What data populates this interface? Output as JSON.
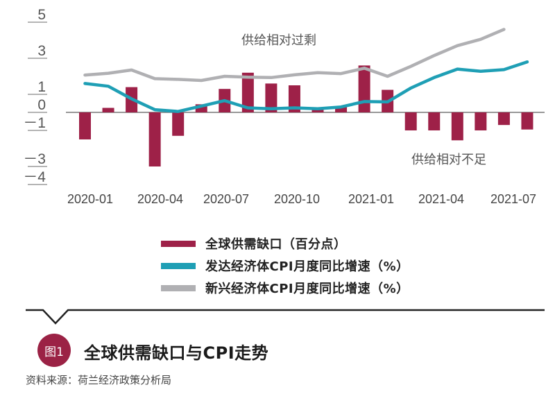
{
  "chart_data": {
    "type": "bar+line",
    "title": "全球供需缺口与CPI走势",
    "figure_label": "图1",
    "source": "资料来源：荷兰经济政策分析局",
    "xlabel": "",
    "ylabel": "",
    "ylim": [
      -4,
      5
    ],
    "y_ticks": [
      5,
      3,
      1,
      0,
      -1,
      -3,
      -4
    ],
    "y_tick_labels": [
      "5",
      "3",
      "1",
      "0",
      "－1",
      "－3",
      "－4"
    ],
    "x_tick_labels": [
      "2020-01",
      "2020-04",
      "2020-07",
      "2020-10",
      "2021-01",
      "2021-04",
      "2021-07"
    ],
    "categories": [
      "2020-01",
      "2020-02",
      "2020-03",
      "2020-04",
      "2020-05",
      "2020-06",
      "2020-07",
      "2020-08",
      "2020-09",
      "2020-10",
      "2020-11",
      "2020-12",
      "2021-01",
      "2021-02",
      "2021-03",
      "2021-04",
      "2021-05",
      "2021-06",
      "2021-07",
      "2021-08"
    ],
    "series": [
      {
        "name": "全球供需缺口（百分点）",
        "kind": "bar",
        "color": "#9e2148",
        "values": [
          -1.5,
          0.25,
          1.4,
          -3.0,
          -1.3,
          0.45,
          1.3,
          2.2,
          1.6,
          1.5,
          0.15,
          0.3,
          2.6,
          1.25,
          -1.0,
          -1.0,
          -1.55,
          -1.0,
          -0.7,
          -0.95
        ]
      },
      {
        "name": "发达经济体CPI月度同比增速（%）",
        "kind": "line",
        "color": "#1f9fb5",
        "values": [
          1.6,
          1.45,
          0.75,
          0.15,
          0.05,
          0.35,
          0.65,
          0.25,
          0.2,
          0.25,
          0.2,
          0.3,
          0.6,
          0.58,
          1.35,
          1.93,
          2.4,
          2.28,
          2.37,
          2.8
        ]
      },
      {
        "name": "新兴经济体CPI月度同比增速（%）",
        "kind": "line",
        "color": "#b0b0b3",
        "values": [
          2.07,
          2.17,
          2.35,
          1.87,
          1.83,
          1.77,
          2.0,
          1.95,
          1.93,
          2.08,
          2.2,
          2.15,
          2.45,
          2.0,
          2.55,
          3.15,
          3.7,
          4.05,
          4.6,
          null
        ]
      }
    ],
    "annotations": [
      "供给相对过剩",
      "供给相对不足"
    ],
    "legend_position": "bottom-center",
    "grid": false
  }
}
